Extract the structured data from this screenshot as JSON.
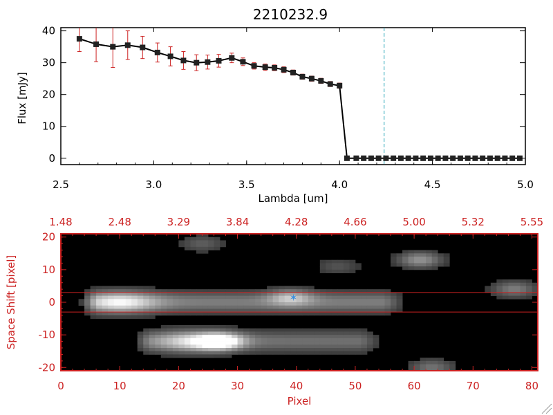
{
  "chart_data": [
    {
      "type": "line",
      "title": "2210232.9",
      "xlabel": "Lambda [um]",
      "ylabel": "Flux [mJy]",
      "xlim": [
        2.5,
        5.0
      ],
      "ylim": [
        -2,
        41
      ],
      "x_ticks": [
        "2.5",
        "3.0",
        "3.5",
        "4.0",
        "4.5",
        "5.0"
      ],
      "y_ticks": [
        "0",
        "10",
        "20",
        "30",
        "40"
      ],
      "colors": {
        "line": "#000000",
        "errorbar": "#cc2222",
        "marker": "#222222",
        "vline": "#2aa7b8"
      },
      "vline_x": 4.24,
      "series": [
        {
          "x": [
            2.6,
            2.69,
            2.78,
            2.86,
            2.94,
            3.02,
            3.09,
            3.16,
            3.23,
            3.29,
            3.35,
            3.42,
            3.48,
            3.54,
            3.6,
            3.65,
            3.7,
            3.75,
            3.8,
            3.85,
            3.9,
            3.95,
            4.0,
            4.04,
            4.09,
            4.13,
            4.17,
            4.21,
            4.25,
            4.29,
            4.33,
            4.37,
            4.41,
            4.45,
            4.49,
            4.53,
            4.57,
            4.61,
            4.65,
            4.69,
            4.73,
            4.77,
            4.81,
            4.85,
            4.89,
            4.93,
            4.97
          ],
          "y": [
            37.5,
            35.8,
            35.0,
            35.5,
            34.8,
            33.2,
            32.0,
            30.7,
            30.0,
            30.2,
            30.6,
            31.5,
            30.3,
            29.0,
            28.6,
            28.4,
            27.8,
            26.9,
            25.6,
            25.0,
            24.3,
            23.3,
            22.8,
            0,
            0,
            0,
            0,
            0,
            0,
            0,
            0,
            0,
            0,
            0,
            0,
            0,
            0,
            0,
            0,
            0,
            0,
            0,
            0,
            0,
            0,
            0,
            0
          ],
          "err": [
            4.0,
            5.5,
            6.5,
            4.5,
            3.5,
            3.0,
            3.0,
            2.8,
            2.5,
            2.2,
            2.0,
            1.5,
            1.2,
            1.0,
            1.0,
            0.9,
            0.9,
            0.8,
            0.8,
            0.8,
            0.8,
            0.8,
            0.8,
            0,
            0,
            0,
            0,
            0,
            0,
            0,
            0,
            0,
            0,
            0,
            0,
            0,
            0,
            0,
            0,
            0,
            0,
            0,
            0,
            0,
            0,
            0,
            0
          ]
        }
      ]
    },
    {
      "type": "heatmap",
      "xlabel": "Pixel",
      "ylabel": "Space Shift [pixel]",
      "xlim": [
        0,
        81
      ],
      "ylim": [
        -21,
        21
      ],
      "x_ticks": [
        "0",
        "10",
        "20",
        "30",
        "40",
        "50",
        "60",
        "70",
        "80"
      ],
      "y_ticks": [
        "-20",
        "-10",
        "0",
        "10",
        "20"
      ],
      "top_axis_ticks": [
        "1.48",
        "2.48",
        "3.29",
        "3.84",
        "4.28",
        "4.66",
        "5.00",
        "5.32",
        "5.55"
      ],
      "colors": {
        "axes": "#cc2222",
        "background": "#000000",
        "marker": "#3a8fe0"
      },
      "hlines_y": [
        3,
        -3
      ],
      "marker": {
        "x": 39.5,
        "y": 1.5
      },
      "sources": [
        {
          "type": "streak",
          "x_start": 6,
          "x_end": 56,
          "y": 0,
          "peak_x": 10,
          "brightness": 1.0
        },
        {
          "type": "streak",
          "x_start": 15,
          "x_end": 52,
          "y": -12,
          "peak_x": 22,
          "brightness": 0.85
        },
        {
          "type": "blob",
          "x": 27,
          "y": -12,
          "brightness": 0.9
        },
        {
          "type": "blob",
          "x": 39,
          "y": 1.5,
          "brightness": 0.45
        },
        {
          "type": "blob",
          "x": 61,
          "y": 13,
          "brightness": 0.5
        },
        {
          "type": "blob",
          "x": 77,
          "y": 4,
          "brightness": 0.4
        },
        {
          "type": "blob",
          "x": 24,
          "y": 18,
          "brightness": 0.25
        },
        {
          "type": "blob",
          "x": 47,
          "y": 11,
          "brightness": 0.2
        },
        {
          "type": "blob",
          "x": 63,
          "y": -20,
          "brightness": 0.35
        }
      ]
    }
  ]
}
